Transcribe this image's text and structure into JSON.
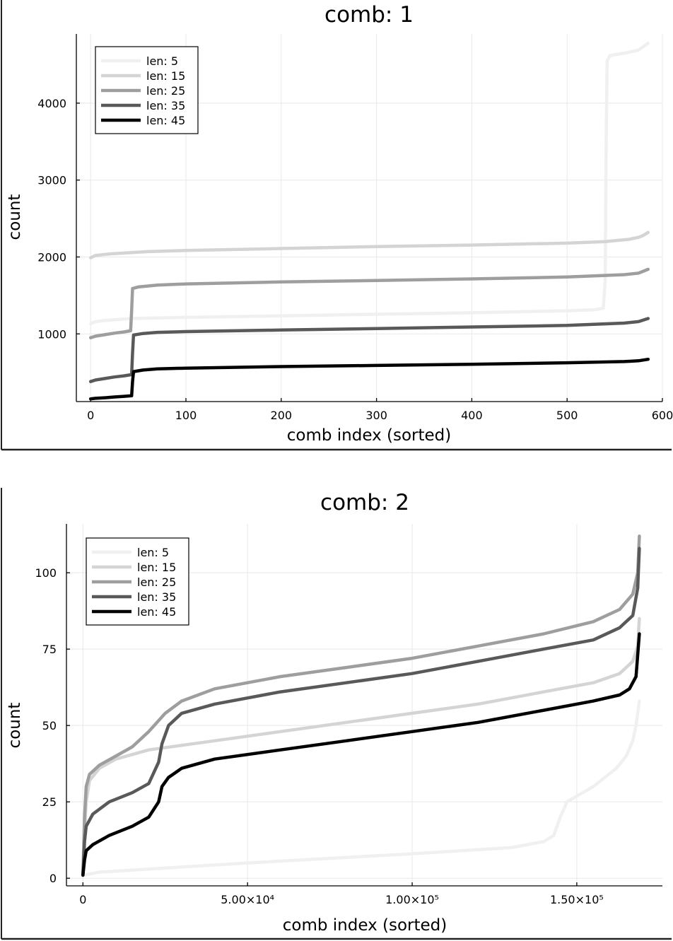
{
  "chart_data": [
    {
      "type": "line",
      "title": "comb: 1",
      "xlabel": "comb index (sorted)",
      "ylabel": "count",
      "xlim": [
        -15,
        600
      ],
      "ylim": [
        120,
        4900
      ],
      "xticks": [
        0,
        100,
        200,
        300,
        400,
        500,
        600
      ],
      "xtick_labels": [
        "0",
        "100",
        "200",
        "300",
        "400",
        "500",
        "600"
      ],
      "yticks": [
        1000,
        2000,
        3000,
        4000
      ],
      "ytick_labels": [
        "1000",
        "2000",
        "3000",
        "4000"
      ],
      "grid": true,
      "legend_position": "top-left",
      "series": [
        {
          "name": "len: 5",
          "color": "#f0f0f0",
          "points": [
            [
              0,
              1130
            ],
            [
              3,
              1150
            ],
            [
              8,
              1165
            ],
            [
              20,
              1180
            ],
            [
              43,
              1200
            ],
            [
              60,
              1205
            ],
            [
              100,
              1215
            ],
            [
              200,
              1235
            ],
            [
              300,
              1255
            ],
            [
              400,
              1275
            ],
            [
              500,
              1300
            ],
            [
              530,
              1315
            ],
            [
              538,
              1335
            ],
            [
              540,
              1700
            ],
            [
              541,
              3500
            ],
            [
              542,
              4550
            ],
            [
              545,
              4620
            ],
            [
              560,
              4650
            ],
            [
              575,
              4690
            ],
            [
              585,
              4780
            ]
          ]
        },
        {
          "name": "len: 15",
          "color": "#d4d4d4",
          "points": [
            [
              0,
              1990
            ],
            [
              5,
              2020
            ],
            [
              20,
              2040
            ],
            [
              60,
              2070
            ],
            [
              100,
              2085
            ],
            [
              200,
              2110
            ],
            [
              300,
              2135
            ],
            [
              400,
              2155
            ],
            [
              500,
              2180
            ],
            [
              540,
              2200
            ],
            [
              565,
              2230
            ],
            [
              575,
              2255
            ],
            [
              580,
              2280
            ],
            [
              585,
              2320
            ]
          ]
        },
        {
          "name": "len: 25",
          "color": "#9e9e9e",
          "points": [
            [
              0,
              950
            ],
            [
              5,
              970
            ],
            [
              15,
              990
            ],
            [
              25,
              1010
            ],
            [
              35,
              1025
            ],
            [
              42,
              1040
            ],
            [
              43,
              1300
            ],
            [
              44,
              1590
            ],
            [
              50,
              1610
            ],
            [
              70,
              1635
            ],
            [
              100,
              1650
            ],
            [
              200,
              1675
            ],
            [
              300,
              1695
            ],
            [
              400,
              1715
            ],
            [
              500,
              1740
            ],
            [
              560,
              1770
            ],
            [
              575,
              1790
            ],
            [
              585,
              1840
            ]
          ]
        },
        {
          "name": "len: 35",
          "color": "#595959",
          "points": [
            [
              0,
              380
            ],
            [
              5,
              400
            ],
            [
              15,
              420
            ],
            [
              25,
              440
            ],
            [
              35,
              455
            ],
            [
              43,
              470
            ],
            [
              44,
              750
            ],
            [
              45,
              985
            ],
            [
              55,
              1005
            ],
            [
              70,
              1020
            ],
            [
              100,
              1030
            ],
            [
              200,
              1050
            ],
            [
              300,
              1070
            ],
            [
              400,
              1090
            ],
            [
              500,
              1110
            ],
            [
              560,
              1140
            ],
            [
              575,
              1160
            ],
            [
              585,
              1200
            ]
          ]
        },
        {
          "name": "len: 45",
          "color": "#000000",
          "points": [
            [
              0,
              155
            ],
            [
              5,
              162
            ],
            [
              15,
              170
            ],
            [
              25,
              180
            ],
            [
              35,
              188
            ],
            [
              43,
              195
            ],
            [
              44,
              380
            ],
            [
              45,
              510
            ],
            [
              55,
              530
            ],
            [
              70,
              545
            ],
            [
              100,
              555
            ],
            [
              200,
              575
            ],
            [
              300,
              590
            ],
            [
              400,
              605
            ],
            [
              500,
              625
            ],
            [
              560,
              640
            ],
            [
              575,
              650
            ],
            [
              585,
              670
            ]
          ]
        }
      ]
    },
    {
      "type": "line",
      "title": "comb: 2",
      "xlabel": "comb index (sorted)",
      "ylabel": "count",
      "xlim": [
        -5000,
        176000
      ],
      "ylim": [
        -2.5,
        116
      ],
      "xticks": [
        0,
        50000,
        100000,
        150000
      ],
      "xtick_labels": [
        "0",
        "5.00×10⁴",
        "1.00×10⁵",
        "1.50×10⁵"
      ],
      "yticks": [
        0,
        25,
        50,
        75,
        100
      ],
      "ytick_labels": [
        "0",
        "25",
        "50",
        "75",
        "100"
      ],
      "grid": true,
      "legend_position": "top-left",
      "series": [
        {
          "name": "len: 5",
          "color": "#f0f0f0",
          "points": [
            [
              0,
              1
            ],
            [
              5000,
              2
            ],
            [
              20000,
              3
            ],
            [
              50000,
              5
            ],
            [
              100000,
              8
            ],
            [
              130000,
              10
            ],
            [
              140000,
              12
            ],
            [
              143000,
              14
            ],
            [
              145000,
              20
            ],
            [
              147000,
              25
            ],
            [
              155000,
              30
            ],
            [
              162000,
              36
            ],
            [
              165000,
              40
            ],
            [
              167000,
              45
            ],
            [
              168000,
              50
            ],
            [
              169000,
              58
            ]
          ]
        },
        {
          "name": "len: 15",
          "color": "#d4d4d4",
          "points": [
            [
              0,
              1
            ],
            [
              500,
              15
            ],
            [
              1000,
              25
            ],
            [
              2000,
              32
            ],
            [
              5000,
              36
            ],
            [
              10000,
              39
            ],
            [
              20000,
              42
            ],
            [
              40000,
              45
            ],
            [
              60000,
              48
            ],
            [
              80000,
              51
            ],
            [
              100000,
              54
            ],
            [
              120000,
              57
            ],
            [
              140000,
              61
            ],
            [
              155000,
              64
            ],
            [
              163000,
              67
            ],
            [
              167000,
              71
            ],
            [
              168500,
              76
            ],
            [
              169000,
              85
            ]
          ]
        },
        {
          "name": "len: 25",
          "color": "#9e9e9e",
          "points": [
            [
              0,
              1
            ],
            [
              500,
              20
            ],
            [
              1000,
              30
            ],
            [
              2000,
              34
            ],
            [
              5000,
              37
            ],
            [
              10000,
              40
            ],
            [
              15000,
              43
            ],
            [
              20000,
              48
            ],
            [
              25000,
              54
            ],
            [
              30000,
              58
            ],
            [
              40000,
              62
            ],
            [
              60000,
              66
            ],
            [
              80000,
              69
            ],
            [
              100000,
              72
            ],
            [
              120000,
              76
            ],
            [
              140000,
              80
            ],
            [
              155000,
              84
            ],
            [
              163000,
              88
            ],
            [
              167000,
              93
            ],
            [
              168500,
              100
            ],
            [
              169000,
              112
            ]
          ]
        },
        {
          "name": "len: 35",
          "color": "#595959",
          "points": [
            [
              0,
              1
            ],
            [
              500,
              12
            ],
            [
              1000,
              17
            ],
            [
              3000,
              21
            ],
            [
              8000,
              25
            ],
            [
              15000,
              28
            ],
            [
              20000,
              31
            ],
            [
              23000,
              38
            ],
            [
              24000,
              44
            ],
            [
              26000,
              50
            ],
            [
              30000,
              54
            ],
            [
              40000,
              57
            ],
            [
              60000,
              61
            ],
            [
              80000,
              64
            ],
            [
              100000,
              67
            ],
            [
              120000,
              71
            ],
            [
              140000,
              75
            ],
            [
              155000,
              78
            ],
            [
              163000,
              82
            ],
            [
              167000,
              86
            ],
            [
              168500,
              95
            ],
            [
              169000,
              108
            ]
          ]
        },
        {
          "name": "len: 45",
          "color": "#000000",
          "points": [
            [
              0,
              1
            ],
            [
              500,
              6
            ],
            [
              1000,
              9
            ],
            [
              3000,
              11
            ],
            [
              8000,
              14
            ],
            [
              15000,
              17
            ],
            [
              20000,
              20
            ],
            [
              23000,
              25
            ],
            [
              24000,
              30
            ],
            [
              26000,
              33
            ],
            [
              30000,
              36
            ],
            [
              40000,
              39
            ],
            [
              60000,
              42
            ],
            [
              80000,
              45
            ],
            [
              100000,
              48
            ],
            [
              120000,
              51
            ],
            [
              140000,
              55
            ],
            [
              155000,
              58
            ],
            [
              163000,
              60
            ],
            [
              166000,
              62
            ],
            [
              168000,
              66
            ],
            [
              169000,
              80
            ]
          ]
        }
      ]
    }
  ]
}
